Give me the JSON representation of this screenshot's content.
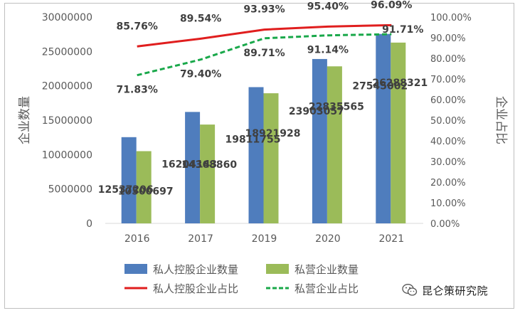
{
  "chart_data": {
    "type": "bar+line",
    "categories": [
      "2016",
      "2017",
      "2019",
      "2020",
      "2021"
    ],
    "bar_series": [
      {
        "name": "私人控股企业数量",
        "values": [
          12537206,
          16204143,
          19811755,
          23903057,
          27545002
        ],
        "labels": [
          "12537206",
          "16204143",
          "19811755",
          "23903057",
          "27545002"
        ],
        "color": "#4f7dbd"
      },
      {
        "name": "私营企业数量",
        "values": [
          10500697,
          14368860,
          18921928,
          22835565,
          26288321
        ],
        "labels": [
          "10500697",
          "14368860",
          "18921928",
          "22835565",
          "26288321"
        ],
        "color": "#9bbb59"
      }
    ],
    "line_series": [
      {
        "name": "私人控股企业占比",
        "values": [
          85.76,
          89.54,
          93.93,
          95.4,
          96.09
        ],
        "labels": [
          "85.76%",
          "89.54%",
          "93.93%",
          "95.40%",
          "96.09%"
        ],
        "color": "#e01e1e",
        "dash": "solid"
      },
      {
        "name": "私营企业占比",
        "values": [
          71.83,
          79.4,
          89.71,
          91.14,
          91.71
        ],
        "labels": [
          "71.83%",
          "79.40%",
          "89.71%",
          "91.14%",
          "91.71%"
        ],
        "color": "#19a84a",
        "dash": "dashed"
      }
    ],
    "ylabel": "企业数量",
    "y2label": "企业占比",
    "ylim": [
      0,
      30000000
    ],
    "y2lim": [
      0,
      100
    ],
    "y_ticks": [
      "0",
      "5000000",
      "10000000",
      "15000000",
      "20000000",
      "25000000",
      "30000000"
    ],
    "y2_ticks": [
      "0.00%",
      "10.00%",
      "20.00%",
      "30.00%",
      "40.00%",
      "50.00%",
      "60.00%",
      "70.00%",
      "80.00%",
      "90.00%",
      "100.00%"
    ],
    "grid": false,
    "legend": "bottom"
  },
  "watermark": {
    "text": "昆仑策研究院",
    "icon": "wechat-icon"
  },
  "colors": {
    "axis_text": "#595959",
    "label_text": "#404040"
  }
}
